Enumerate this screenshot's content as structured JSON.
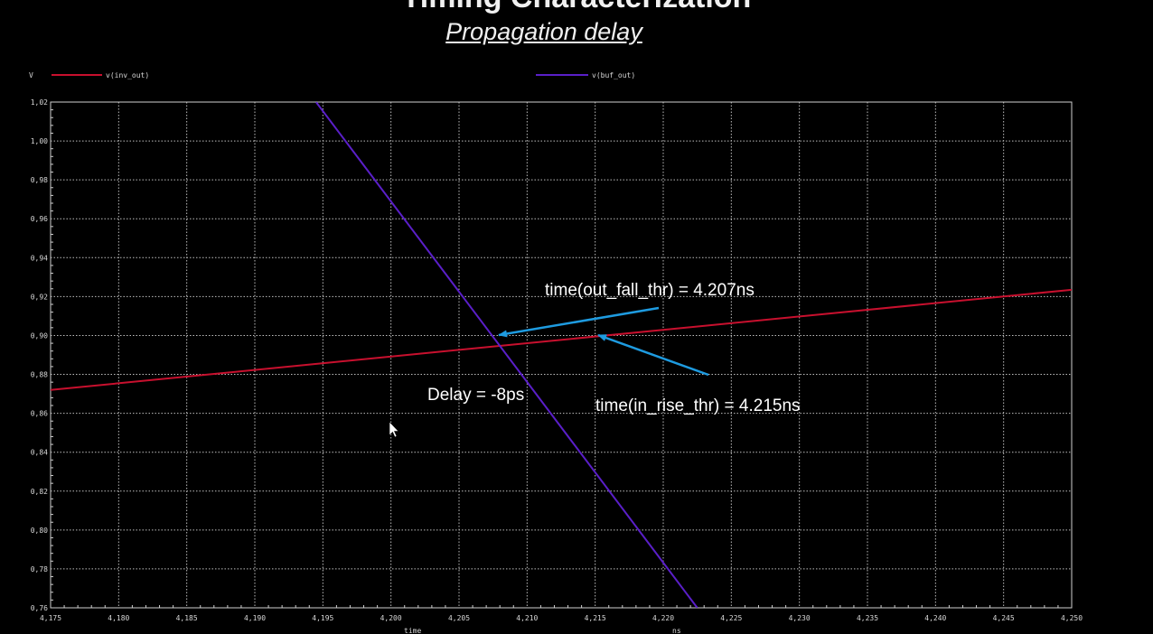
{
  "slide": {
    "title": "Timing Characterization",
    "subtitle": "Propagation delay"
  },
  "chart_data": {
    "type": "line",
    "title": "",
    "ylabel": "V",
    "xlabel": "time",
    "xunit": "ns",
    "xlim": [
      4.175,
      4.25
    ],
    "ylim": [
      0.76,
      1.02
    ],
    "x_ticks": [
      "4,175",
      "4,180",
      "4,185",
      "4,190",
      "4,195",
      "4,200",
      "4,205",
      "4,210",
      "4,215",
      "4,220",
      "4,225",
      "4,230",
      "4,235",
      "4,240",
      "4,245",
      "4,250"
    ],
    "y_ticks": [
      "1,02",
      "1,00",
      "0,98",
      "0,96",
      "0,94",
      "0,92",
      "0,90",
      "0,88",
      "0,86",
      "0,84",
      "0,82",
      "0,80",
      "0,78",
      "0,76"
    ],
    "grid": true,
    "series": [
      {
        "name": "v(inv_out)",
        "color": "#c8102e",
        "x": [
          4.175,
          4.25
        ],
        "y": [
          0.872,
          0.9235
        ]
      },
      {
        "name": "v(buf_out)",
        "color": "#5a1fc8",
        "x": [
          4.1945,
          4.2225
        ],
        "y": [
          1.02,
          0.76
        ]
      }
    ],
    "annotations": [
      {
        "text": "time(out_fall_thr) = 4.207ns",
        "target": [
          4.208,
          0.9
        ]
      },
      {
        "text": "time(in_rise_thr) = 4.215ns",
        "target": [
          4.2153,
          0.9
        ]
      },
      {
        "text": "Delay = -8ps"
      }
    ],
    "arrow_color": "#1e9be0"
  }
}
